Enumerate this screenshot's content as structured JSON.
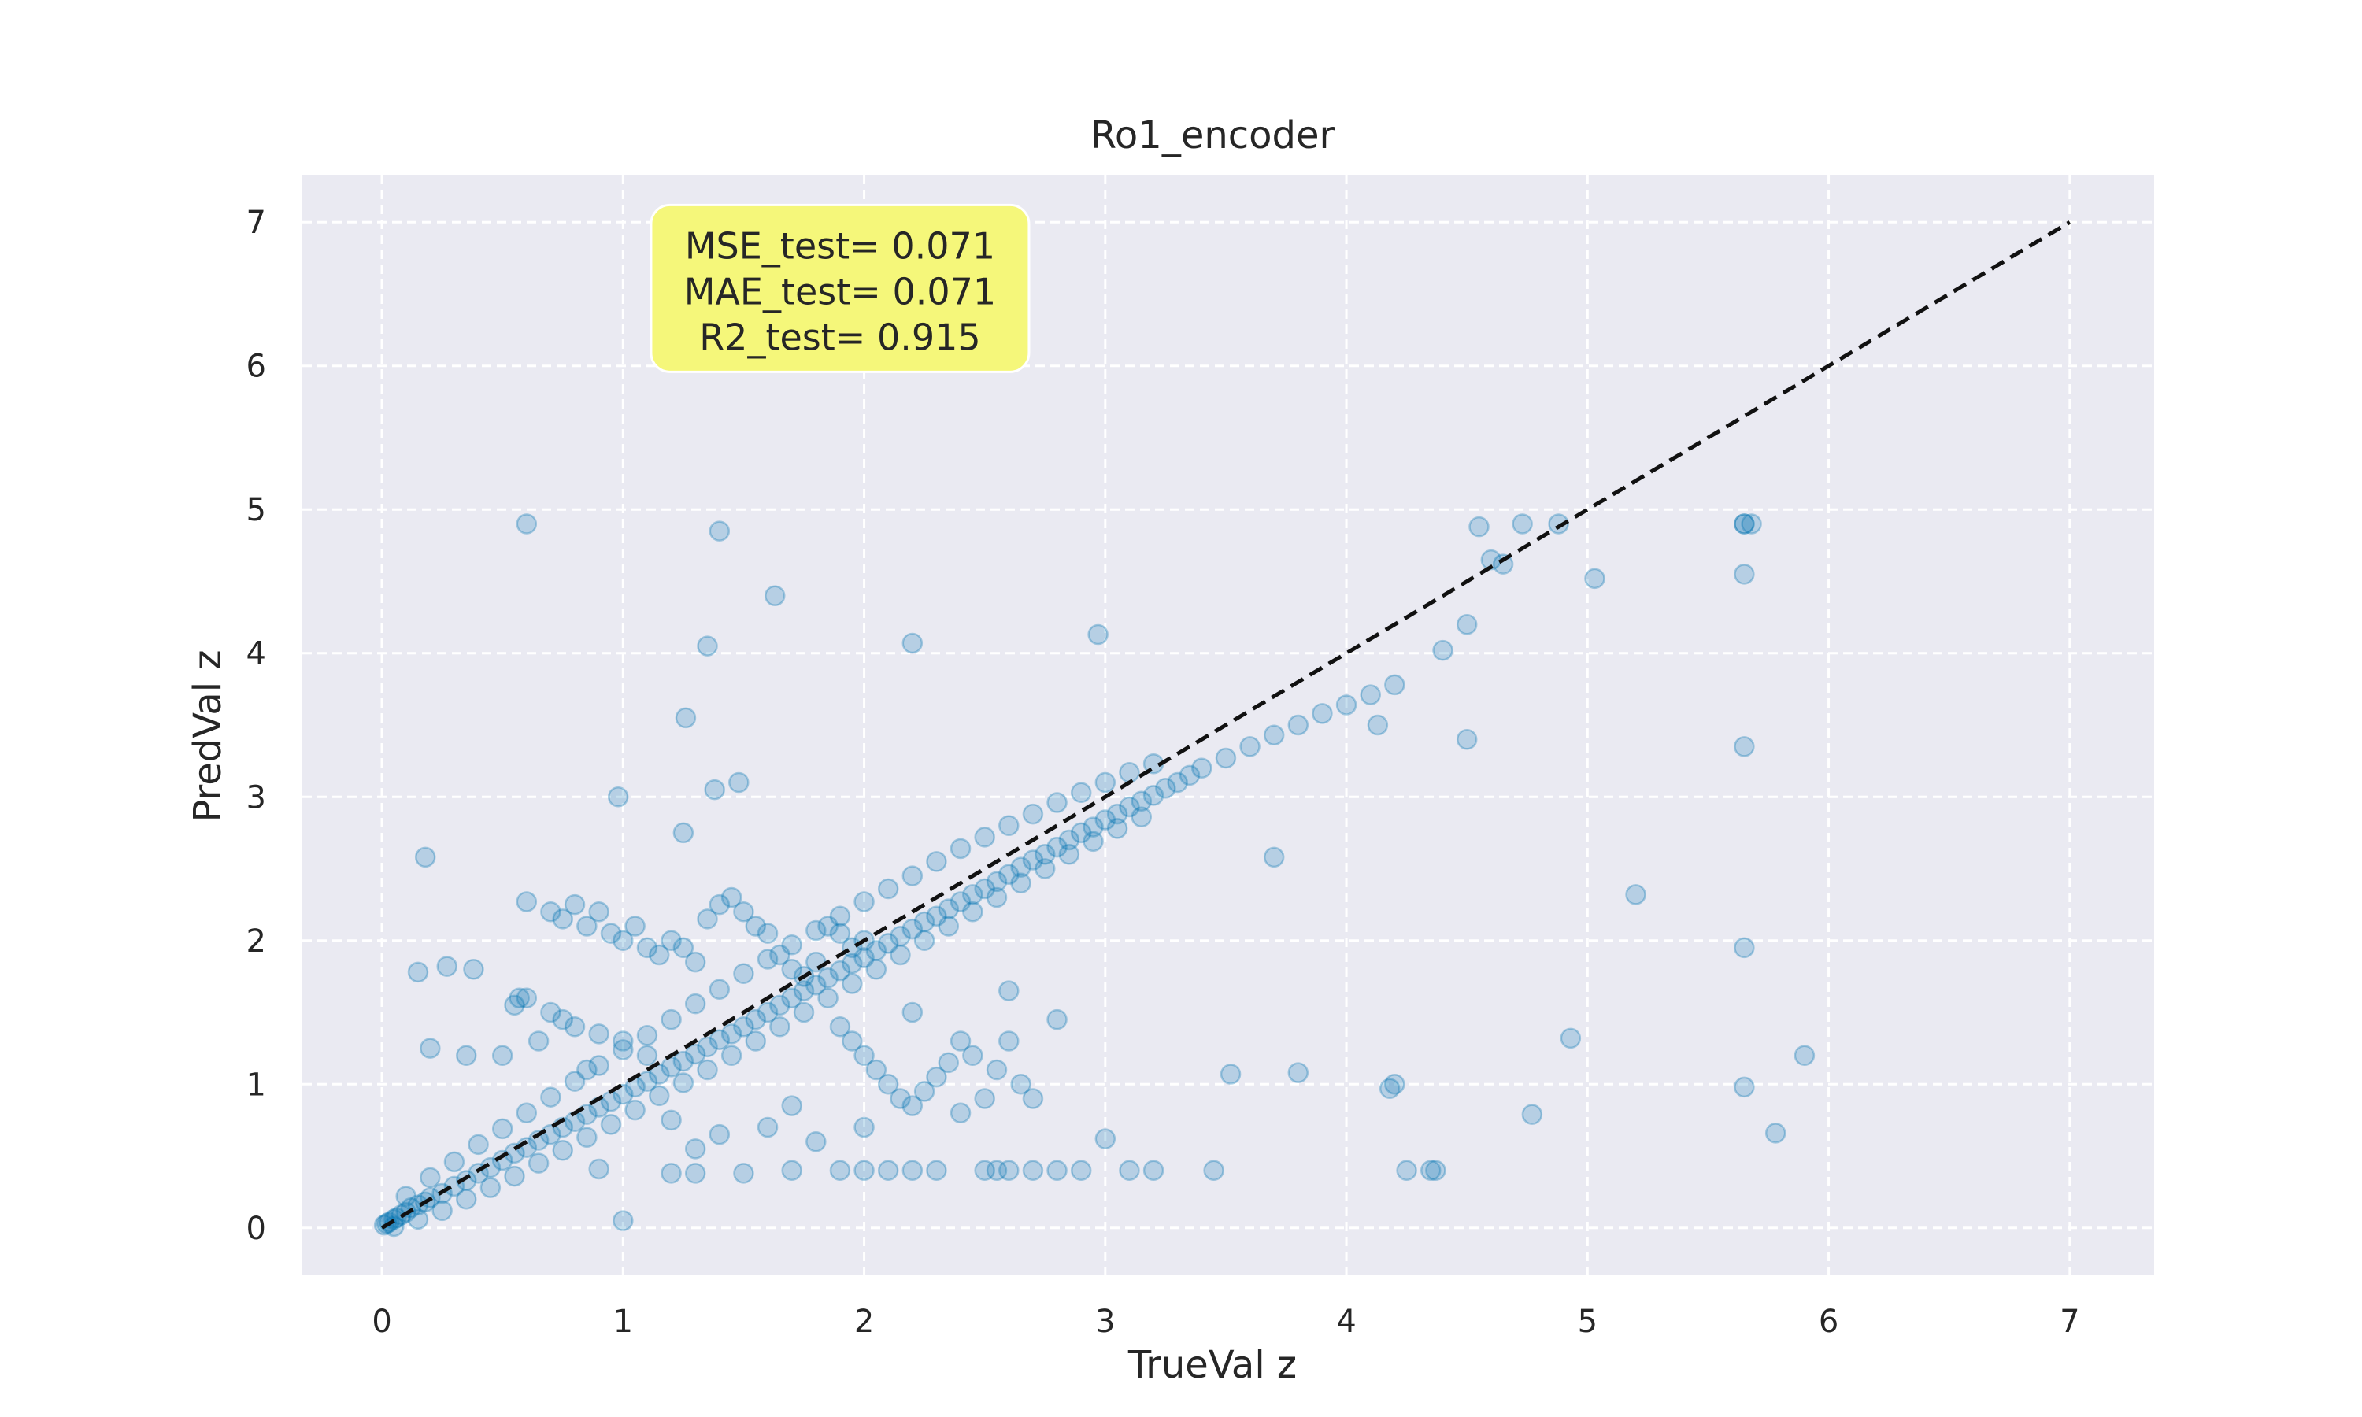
{
  "chart_data": {
    "type": "scatter",
    "title": "Ro1_encoder",
    "xlabel": "TrueVal z",
    "ylabel": "PredVal z",
    "xlim": [
      -0.33,
      7.35
    ],
    "ylim": [
      -0.33,
      7.33
    ],
    "xticks": [
      0,
      1,
      2,
      3,
      4,
      5,
      6,
      7
    ],
    "yticks": [
      0,
      1,
      2,
      3,
      4,
      5,
      6,
      7
    ],
    "grid": true,
    "grid_style": "dashed",
    "colors": {
      "background": "#eaeaf2",
      "grid": "#ffffff",
      "points": "#0072b2",
      "reference_line": "#111111",
      "annotation_box": "#f5f77a"
    },
    "point_alpha": 0.22,
    "reference_line": {
      "x": [
        0,
        7
      ],
      "y": [
        0,
        7
      ],
      "style": "dashed"
    },
    "annotation": {
      "lines": [
        "MSE_test= 0.071",
        "MAE_test= 0.071",
        "R2_test=  0.915"
      ],
      "data_anchor": [
        1.9,
        6.55
      ]
    },
    "series": [
      {
        "x": [
          0.01,
          0.02,
          0.03,
          0.05,
          0.06,
          0.08,
          0.1,
          0.12,
          0.15,
          0.18,
          0.2,
          0.25,
          0.3,
          0.35,
          0.4,
          0.45,
          0.5,
          0.55,
          0.6,
          0.65,
          0.7,
          0.75,
          0.8,
          0.85,
          0.9,
          0.95,
          1.0,
          1.05,
          1.1,
          1.15,
          1.2,
          1.25,
          1.3,
          1.35,
          1.4,
          1.45,
          1.5,
          1.55,
          1.6,
          1.65,
          1.7,
          1.75,
          1.8,
          1.85,
          1.9,
          1.95,
          2.0,
          2.05,
          2.1,
          2.15,
          2.2,
          2.25,
          2.3,
          2.35,
          2.4,
          2.45,
          2.5,
          2.55,
          2.6,
          2.65,
          2.7,
          2.75,
          2.8,
          2.85,
          2.9,
          2.95,
          3.0,
          3.05,
          3.1,
          3.15,
          3.2,
          3.25,
          3.3,
          3.35,
          3.4,
          3.5,
          3.6,
          3.7,
          3.8,
          3.9,
          4.0,
          4.1,
          4.2
        ],
        "y": [
          0.02,
          0.03,
          0.04,
          0.06,
          0.07,
          0.09,
          0.11,
          0.14,
          0.16,
          0.18,
          0.21,
          0.24,
          0.29,
          0.33,
          0.38,
          0.42,
          0.47,
          0.52,
          0.56,
          0.61,
          0.65,
          0.7,
          0.74,
          0.79,
          0.84,
          0.88,
          0.93,
          0.98,
          1.02,
          1.07,
          1.12,
          1.16,
          1.21,
          1.26,
          1.31,
          1.35,
          1.4,
          1.45,
          1.5,
          1.55,
          1.6,
          1.65,
          1.69,
          1.74,
          1.79,
          1.84,
          1.88,
          1.93,
          1.98,
          2.03,
          2.08,
          2.13,
          2.17,
          2.22,
          2.27,
          2.32,
          2.36,
          2.41,
          2.46,
          2.51,
          2.56,
          2.6,
          2.65,
          2.7,
          2.75,
          2.79,
          2.84,
          2.88,
          2.93,
          2.97,
          3.01,
          3.06,
          3.1,
          3.15,
          3.2,
          3.27,
          3.35,
          3.43,
          3.5,
          3.58,
          3.64,
          3.71,
          3.78
        ]
      },
      {
        "x": [
          0.1,
          0.2,
          0.3,
          0.4,
          0.5,
          0.6,
          0.7,
          0.8,
          0.9,
          1.0,
          1.1,
          1.2,
          1.3,
          1.4,
          1.5,
          1.6,
          1.7,
          1.8,
          1.9,
          2.0,
          2.1,
          2.2,
          2.3,
          2.4,
          2.5,
          2.6,
          2.7,
          2.8,
          2.9,
          3.0,
          3.1,
          3.2
        ],
        "y": [
          0.22,
          0.35,
          0.46,
          0.58,
          0.69,
          0.8,
          0.91,
          1.02,
          1.13,
          1.24,
          1.34,
          1.45,
          1.56,
          1.66,
          1.77,
          1.87,
          1.97,
          2.07,
          2.17,
          2.27,
          2.36,
          2.45,
          2.55,
          2.64,
          2.72,
          2.8,
          2.88,
          2.96,
          3.03,
          3.1,
          3.17,
          3.23
        ]
      },
      {
        "x": [
          0.05,
          0.15,
          0.25,
          0.35,
          0.45,
          0.55,
          0.65,
          0.75,
          0.85,
          0.95,
          1.05,
          1.15,
          1.25,
          1.35,
          1.45,
          1.55,
          1.65,
          1.75,
          1.85,
          1.95,
          2.05,
          2.15,
          2.25,
          2.35,
          2.45,
          2.55,
          2.65,
          2.75,
          2.85,
          2.95,
          3.05,
          3.15
        ],
        "y": [
          0.01,
          0.06,
          0.12,
          0.2,
          0.28,
          0.36,
          0.45,
          0.54,
          0.63,
          0.72,
          0.82,
          0.92,
          1.01,
          1.1,
          1.2,
          1.3,
          1.4,
          1.5,
          1.6,
          1.7,
          1.8,
          1.9,
          2.0,
          2.1,
          2.2,
          2.3,
          2.4,
          2.5,
          2.6,
          2.69,
          2.78,
          2.86
        ]
      },
      {
        "x": [
          0.7,
          0.75,
          0.8,
          0.85,
          0.9,
          0.95,
          1.0,
          1.05,
          1.1,
          1.15,
          1.2,
          1.25,
          1.3,
          1.35,
          1.4,
          1.45,
          1.5,
          1.55,
          1.6,
          1.65,
          1.7,
          1.75,
          1.8,
          1.85,
          1.9,
          1.95,
          2.0
        ],
        "y": [
          2.2,
          2.15,
          2.25,
          2.1,
          2.2,
          2.05,
          2.0,
          2.1,
          1.95,
          1.9,
          2.0,
          1.95,
          1.85,
          2.15,
          2.25,
          2.3,
          2.2,
          2.1,
          2.05,
          1.9,
          1.8,
          1.75,
          1.85,
          2.1,
          2.05,
          1.95,
          2.0
        ]
      },
      {
        "x": [
          1.9,
          1.95,
          2.0,
          2.05,
          2.1,
          2.15,
          2.2,
          2.25,
          2.3,
          2.35,
          2.4,
          2.45,
          2.5,
          2.55,
          2.6,
          2.65,
          2.7
        ],
        "y": [
          1.4,
          1.3,
          1.2,
          1.1,
          1.0,
          0.9,
          0.85,
          0.95,
          1.05,
          1.15,
          0.8,
          1.2,
          0.9,
          1.1,
          1.3,
          1.0,
          0.9
        ]
      },
      {
        "x": [
          0.5,
          0.55,
          0.6,
          0.65,
          0.7,
          0.75,
          0.8,
          0.85,
          0.9,
          1.0,
          1.1,
          1.2,
          1.3,
          1.4,
          1.6,
          1.7,
          1.8,
          2.0,
          2.2,
          2.4,
          2.6,
          2.8
        ],
        "y": [
          1.2,
          1.55,
          1.6,
          1.3,
          1.5,
          1.45,
          1.4,
          1.1,
          1.35,
          1.3,
          1.2,
          0.75,
          0.55,
          0.65,
          0.7,
          0.85,
          0.6,
          0.7,
          1.5,
          1.3,
          1.65,
          1.45
        ]
      },
      {
        "x": [
          1.7,
          1.9,
          2.0,
          2.1,
          2.2,
          2.3,
          2.5,
          2.55,
          2.6,
          2.7,
          2.8,
          2.9,
          3.0,
          3.1,
          3.2,
          3.45,
          0.9,
          1.0,
          1.2,
          1.3,
          1.5
        ],
        "y": [
          0.4,
          0.4,
          0.4,
          0.4,
          0.4,
          0.4,
          0.4,
          0.4,
          0.4,
          0.4,
          0.4,
          0.4,
          0.62,
          0.4,
          0.4,
          0.4,
          0.41,
          0.05,
          0.38,
          0.38,
          0.38
        ]
      },
      {
        "x": [
          0.6,
          1.4,
          1.63,
          2.2,
          2.97,
          1.35,
          1.26,
          1.38,
          1.48,
          0.98,
          1.25,
          0.18,
          0.27,
          0.15,
          0.38,
          0.6,
          3.7,
          3.52,
          3.8,
          4.18,
          4.25,
          4.37,
          4.13,
          4.4,
          4.5,
          4.5,
          4.55,
          4.6,
          4.65,
          4.73,
          4.88,
          5.03,
          4.93,
          5.2,
          4.77,
          4.2,
          4.35,
          5.65,
          5.65,
          5.68,
          5.65,
          5.65,
          5.65,
          5.78,
          5.9,
          5.65,
          0.57,
          0.35,
          0.2
        ],
        "y": [
          4.9,
          4.85,
          4.4,
          4.07,
          4.13,
          4.05,
          3.55,
          3.05,
          3.1,
          3.0,
          2.75,
          2.58,
          1.82,
          1.78,
          1.8,
          2.27,
          2.58,
          1.07,
          1.08,
          0.97,
          0.4,
          0.4,
          3.5,
          4.02,
          4.2,
          3.4,
          4.88,
          4.65,
          4.62,
          4.9,
          4.9,
          4.52,
          1.32,
          2.32,
          0.79,
          1.0,
          0.4,
          4.9,
          4.9,
          4.9,
          4.55,
          3.35,
          1.95,
          0.66,
          1.2,
          0.98,
          1.6,
          1.2,
          1.25
        ]
      }
    ]
  }
}
